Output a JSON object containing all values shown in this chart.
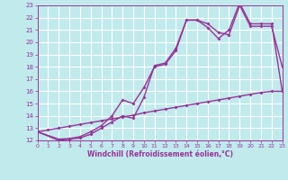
{
  "xlabel": "Windchill (Refroidissement éolien,°C)",
  "xlim": [
    0,
    23
  ],
  "ylim": [
    12,
    23
  ],
  "xticks": [
    0,
    1,
    2,
    3,
    4,
    5,
    6,
    7,
    8,
    9,
    10,
    11,
    12,
    13,
    14,
    15,
    16,
    17,
    18,
    19,
    20,
    21,
    22,
    23
  ],
  "yticks": [
    12,
    13,
    14,
    15,
    16,
    17,
    18,
    19,
    20,
    21,
    22,
    23
  ],
  "bg_color": "#c0eaec",
  "grid_color": "#aad4d8",
  "line_color": "#993399",
  "line_width": 1.0,
  "marker": "D",
  "marker_size": 2.0,
  "line1_x": [
    0,
    1,
    2,
    3,
    4,
    5,
    6,
    7,
    8,
    9,
    10,
    11,
    12,
    13,
    14,
    15,
    16,
    17,
    18,
    19,
    20,
    21,
    22,
    23
  ],
  "line1_y": [
    12.7,
    12.85,
    13.0,
    13.15,
    13.3,
    13.45,
    13.6,
    13.75,
    13.9,
    14.05,
    14.25,
    14.4,
    14.55,
    14.7,
    14.85,
    15.0,
    15.15,
    15.3,
    15.45,
    15.6,
    15.75,
    15.9,
    16.0,
    16.0
  ],
  "line2_x": [
    0,
    2,
    3,
    4,
    5,
    6,
    7,
    8,
    9,
    10,
    11,
    12,
    13,
    14,
    15,
    16,
    17,
    18,
    19,
    20,
    21,
    22,
    23
  ],
  "line2_y": [
    12.7,
    12.0,
    12.1,
    12.2,
    12.5,
    13.0,
    13.5,
    14.0,
    13.8,
    15.5,
    18.1,
    18.3,
    19.5,
    21.8,
    21.8,
    21.5,
    20.8,
    20.6,
    23.0,
    21.3,
    21.3,
    21.3,
    18.0
  ],
  "line3_x": [
    0,
    2,
    3,
    4,
    5,
    6,
    7,
    8,
    9,
    10,
    11,
    12,
    13,
    14,
    15,
    16,
    17,
    18,
    19,
    20,
    21,
    22,
    23
  ],
  "line3_y": [
    12.7,
    12.1,
    12.15,
    12.3,
    12.7,
    13.2,
    14.0,
    15.3,
    15.0,
    16.3,
    18.0,
    18.2,
    19.3,
    21.8,
    21.8,
    21.2,
    20.3,
    21.0,
    23.2,
    21.5,
    21.5,
    21.5,
    16.0
  ]
}
